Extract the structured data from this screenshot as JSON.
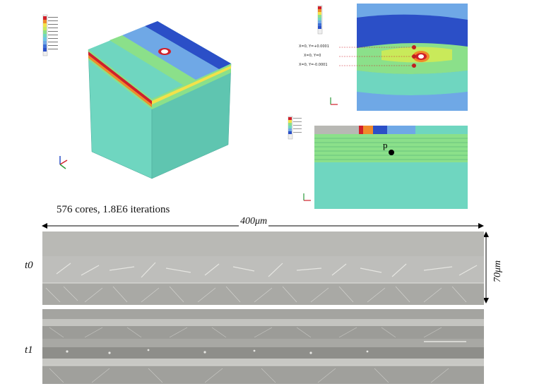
{
  "figure": {
    "caption": "576 cores, 1.8E6 iterations",
    "dimensions": {
      "width": "400μm",
      "height": "70μm"
    },
    "time_labels": [
      "t0",
      "t1"
    ],
    "probe_labels": [
      "X=0, Y=+0.0001",
      "X=0, Y=0",
      "X=0, Y=-0.0001"
    ],
    "point_label": "p"
  },
  "colors": {
    "deep_blue": "#2b4fc7",
    "light_blue": "#6fa8e6",
    "teal": "#6fd6c0",
    "green": "#8be08a",
    "yellow": "#f2e24a",
    "orange": "#f08a2a",
    "red": "#d0202a",
    "gray_micro": "#b8b8b4"
  }
}
